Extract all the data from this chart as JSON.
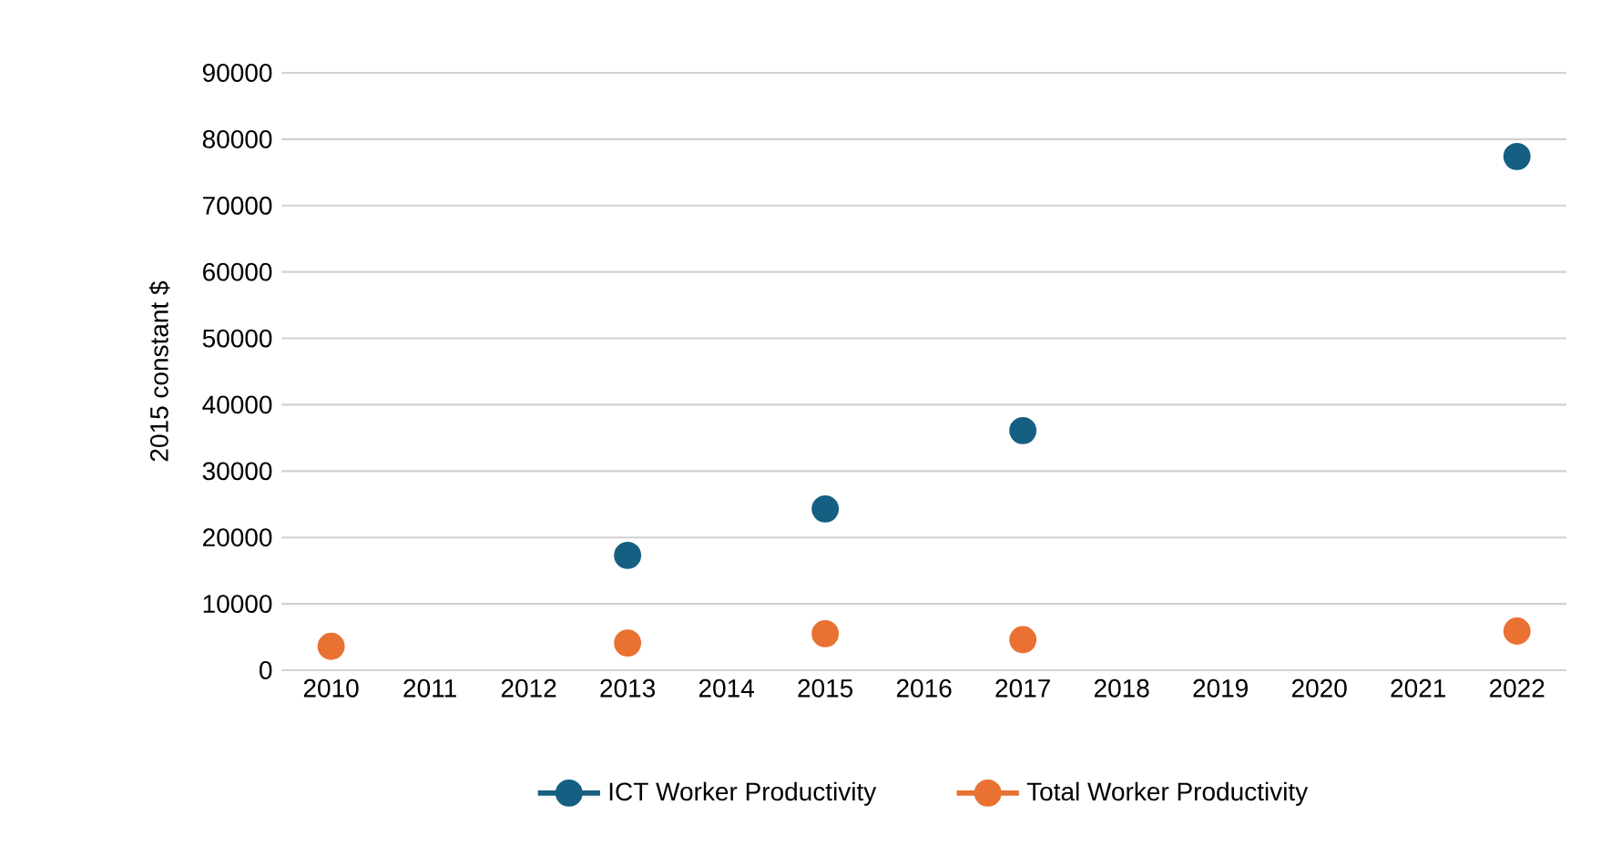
{
  "chart_data": {
    "type": "scatter",
    "ylabel": "2015 constant $",
    "categories": [
      "2010",
      "2011",
      "2012",
      "2013",
      "2014",
      "2015",
      "2016",
      "2017",
      "2018",
      "2019",
      "2020",
      "2021",
      "2022"
    ],
    "series": [
      {
        "name": "ICT Worker Productivity",
        "color": "#156082",
        "values": [
          null,
          null,
          null,
          17300,
          null,
          24300,
          null,
          36100,
          null,
          null,
          null,
          null,
          77400
        ]
      },
      {
        "name": "Total Worker Productivity",
        "color": "#e97132",
        "values": [
          3600,
          null,
          null,
          4100,
          null,
          5500,
          null,
          4600,
          null,
          null,
          null,
          null,
          5900
        ]
      }
    ],
    "ylim": [
      0,
      90000
    ],
    "yticks": [
      0,
      10000,
      20000,
      30000,
      40000,
      50000,
      60000,
      70000,
      80000,
      90000
    ],
    "grid": "y",
    "legend": "bottom",
    "marker": "circle",
    "line_style": "solid"
  }
}
